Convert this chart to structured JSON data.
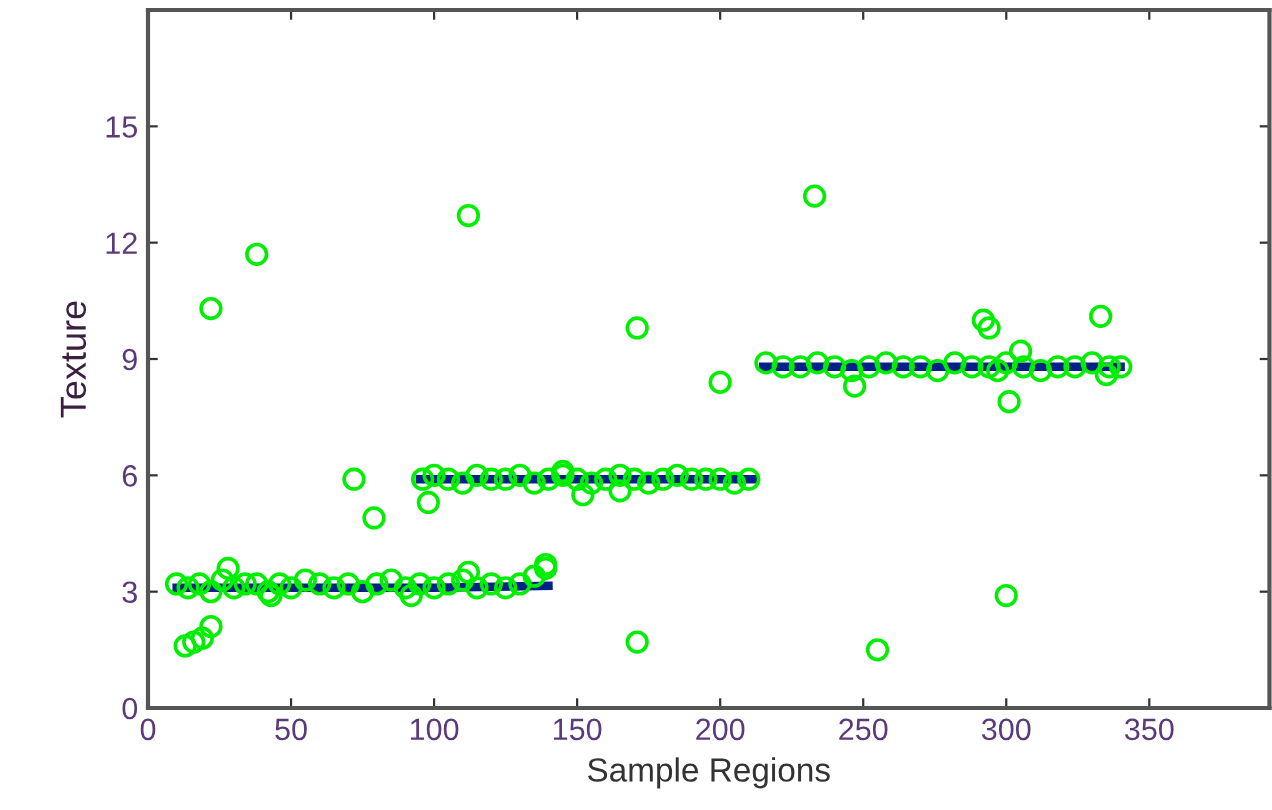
{
  "chart_data": {
    "type": "scatter",
    "xlabel": "Sample Regions",
    "ylabel": "Texture",
    "xlim": [
      0,
      392
    ],
    "ylim": [
      0,
      18
    ],
    "xticks": [
      0,
      50,
      100,
      150,
      200,
      250,
      300,
      350
    ],
    "yticks": [
      0,
      3,
      6,
      9,
      12,
      15
    ],
    "grid": false,
    "series": [
      {
        "type": "line",
        "color": "#00208a",
        "line_style": "solid",
        "marker": "none",
        "x": [
          10,
          40,
          70,
          100,
          140
        ],
        "values": [
          3.1,
          3.1,
          3.1,
          3.1,
          3.15
        ]
      },
      {
        "type": "line",
        "color": "#00208a",
        "line_style": "solid",
        "marker": "none",
        "x": [
          95,
          130,
          170,
          212
        ],
        "values": [
          5.9,
          5.9,
          5.9,
          5.9
        ]
      },
      {
        "type": "line",
        "color": "#00208a",
        "line_style": "solid",
        "marker": "none",
        "x": [
          215,
          260,
          300,
          340
        ],
        "values": [
          8.8,
          8.8,
          8.8,
          8.8
        ]
      },
      {
        "color": "#00ee00",
        "marker": "circle",
        "x": [
          10,
          14,
          18,
          22,
          26,
          30,
          34,
          38,
          42,
          46,
          50,
          55,
          60,
          65,
          70,
          75,
          80,
          85,
          90,
          95,
          100,
          105,
          110,
          115,
          120,
          125,
          130,
          135,
          139,
          96,
          100,
          105,
          110,
          115,
          120,
          125,
          130,
          135,
          140,
          145,
          150,
          155,
          160,
          165,
          170,
          175,
          180,
          185,
          190,
          195,
          200,
          205,
          210,
          216,
          222,
          228,
          234,
          240,
          246,
          252,
          258,
          264,
          270,
          276,
          282,
          288,
          294,
          300,
          306,
          312,
          318,
          324,
          330,
          336,
          340,
          13,
          16,
          19,
          22,
          28,
          43,
          92,
          112,
          139,
          98,
          145,
          152,
          165,
          247,
          297,
          305,
          335,
          22,
          38,
          112,
          72,
          79,
          171,
          200,
          233,
          171,
          255,
          300,
          301,
          292,
          294,
          333
        ],
        "values": [
          3.2,
          3.1,
          3.2,
          3.0,
          3.3,
          3.1,
          3.2,
          3.2,
          3.0,
          3.2,
          3.1,
          3.3,
          3.2,
          3.1,
          3.2,
          3.0,
          3.2,
          3.3,
          3.1,
          3.2,
          3.1,
          3.2,
          3.3,
          3.1,
          3.2,
          3.1,
          3.2,
          3.4,
          3.6,
          5.9,
          6.0,
          5.9,
          5.8,
          6.0,
          5.9,
          5.9,
          6.0,
          5.8,
          5.9,
          6.0,
          5.9,
          5.8,
          5.9,
          6.0,
          5.9,
          5.8,
          5.9,
          6.0,
          5.9,
          5.9,
          5.9,
          5.8,
          5.9,
          8.9,
          8.8,
          8.8,
          8.9,
          8.8,
          8.7,
          8.8,
          8.9,
          8.8,
          8.8,
          8.7,
          8.9,
          8.8,
          8.8,
          8.9,
          8.8,
          8.7,
          8.8,
          8.8,
          8.9,
          8.8,
          8.8,
          1.6,
          1.7,
          1.8,
          2.1,
          3.6,
          2.9,
          2.9,
          3.5,
          3.7,
          5.3,
          6.1,
          5.5,
          5.6,
          8.3,
          8.7,
          9.2,
          8.6,
          10.3,
          11.7,
          12.7,
          5.9,
          4.9,
          9.8,
          8.4,
          13.2,
          1.7,
          1.5,
          2.9,
          7.9,
          10.0,
          9.8,
          10.1
        ]
      }
    ]
  }
}
